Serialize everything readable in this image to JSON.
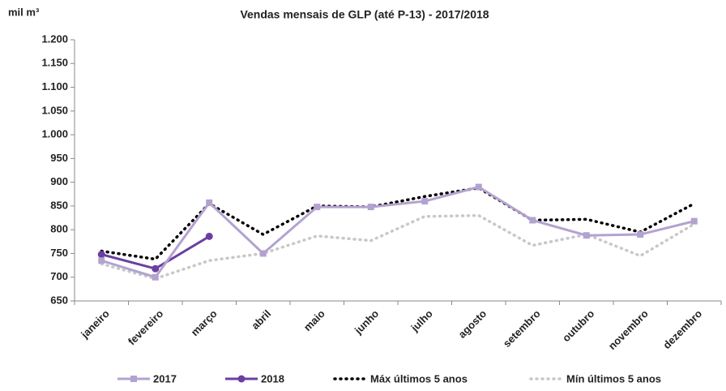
{
  "chart_data": {
    "type": "line",
    "title": "Vendas mensais de GLP (até P-13) - 2017/2018",
    "y_label": "mil m³",
    "categories": [
      "janeiro",
      "fevereiro",
      "março",
      "abril",
      "maio",
      "junho",
      "julho",
      "agosto",
      "setembro",
      "outubro",
      "novembro",
      "dezembro"
    ],
    "series": [
      {
        "name": "2017",
        "color": "#b3a2d0",
        "style": "solid",
        "marker": "square",
        "values": [
          735,
          700,
          857,
          750,
          848,
          848,
          860,
          890,
          820,
          788,
          790,
          818
        ]
      },
      {
        "name": "2018",
        "color": "#6b3fa0",
        "style": "solid",
        "marker": "circle",
        "values": [
          748,
          718,
          786,
          null,
          null,
          null,
          null,
          null,
          null,
          null,
          null,
          null
        ]
      },
      {
        "name": "Máx últimos 5 anos",
        "color": "#000000",
        "style": "dotted",
        "marker": "none",
        "values": [
          755,
          738,
          855,
          790,
          850,
          848,
          870,
          888,
          820,
          822,
          795,
          855
        ]
      },
      {
        "name": "Mín últimos 5 anos",
        "color": "#c8c8c8",
        "style": "dotted",
        "marker": "none",
        "values": [
          728,
          697,
          735,
          750,
          787,
          777,
          828,
          830,
          767,
          790,
          745,
          812
        ]
      }
    ],
    "ylim": [
      650,
      1200
    ],
    "yticks": [
      650,
      700,
      750,
      800,
      850,
      900,
      950,
      {
        "value": 1000,
        "label": "1.000"
      },
      {
        "value": 1050,
        "label": "1.050"
      },
      {
        "value": 1100,
        "label": "1.100"
      },
      {
        "value": 1150,
        "label": "1.150"
      },
      {
        "value": 1200,
        "label": "1.200"
      }
    ],
    "grid": false,
    "legend": "bottom"
  }
}
